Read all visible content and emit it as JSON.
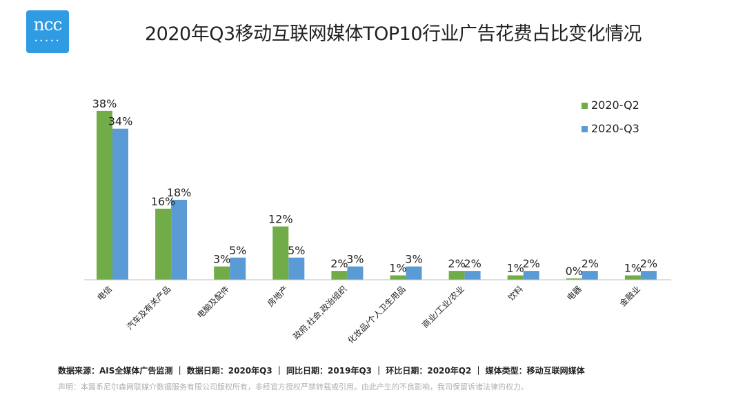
{
  "brand": {
    "logo_text": "ncc",
    "logo_color": "#2f9be3"
  },
  "header": {
    "title": "2020年Q3移动互联网媒体TOP10行业广告花费占比变化情况"
  },
  "chart_data": {
    "type": "bar",
    "categories": [
      "电信",
      "汽车及有关产品",
      "电脑及配件",
      "房地产",
      "政府,社会,政治组织",
      "化妆品/个人卫生用品",
      "商业/工业/农业",
      "饮料",
      "电器",
      "金融业"
    ],
    "series": [
      {
        "name": "2020-Q2",
        "values": [
          38,
          16,
          3,
          12,
          2,
          1,
          2,
          1,
          0,
          1
        ],
        "color": "#71ac48"
      },
      {
        "name": "2020-Q3",
        "values": [
          34,
          18,
          5,
          5,
          3,
          3,
          2,
          2,
          2,
          2
        ],
        "color": "#5b9bd5"
      }
    ],
    "value_suffix": "%",
    "legend_position": "top-right",
    "grid": false,
    "ylim": [
      0,
      40
    ]
  },
  "footer": {
    "source": "数据来源：AIS全媒体广告监测 ｜ 数据日期：2020年Q3 ｜ 同比日期：2019年Q3 ｜ 环比日期：2020年Q2 ｜ 媒体类型：移动互联网媒体",
    "disclaimer": "声明：本篇系尼尔森网联媒介数据服务有限公司版权所有，非经官方授权严禁转载或引用。由此产生的不良影响，我司保留诉诸法律的权力。"
  }
}
